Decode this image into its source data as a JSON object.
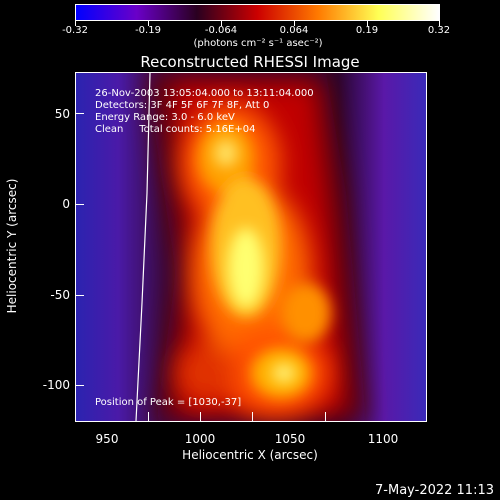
{
  "colorbar": {
    "tick_labels": [
      "-0.32",
      "-0.19",
      "-0.064",
      "0.064",
      "0.19",
      "0.32"
    ],
    "units": "(photons cm⁻² s⁻¹ asec⁻²)",
    "colors": [
      "#0000ff",
      "#6a00c8",
      "#2a0020",
      "#cc0000",
      "#ff7a00",
      "#ffff55",
      "#ffffff"
    ]
  },
  "title": "Reconstructed RHESSI Image",
  "info": {
    "line1": "26-Nov-2003 13:05:04.000 to 13:11:04.000",
    "line2": "Detectors: 3F 4F 5F 6F 7F 8F, Att 0",
    "line3": "Energy Range: 3.0 - 6.0 keV",
    "line4": "Clean     Total counts: 5.16E+04"
  },
  "peak_label": "Position of Peak = [1030,-37]",
  "x_axis": {
    "title": "Heliocentric X (arcsec)",
    "tick_labels": [
      "950",
      "1000",
      "1050",
      "1100"
    ],
    "range": [
      932,
      1125
    ]
  },
  "y_axis": {
    "title": "Heliocentric Y (arcsec)",
    "tick_labels": [
      "50",
      "0",
      "-50",
      "-100"
    ],
    "range": [
      -120,
      72
    ]
  },
  "timestamp": "7-May-2022 11:13"
}
